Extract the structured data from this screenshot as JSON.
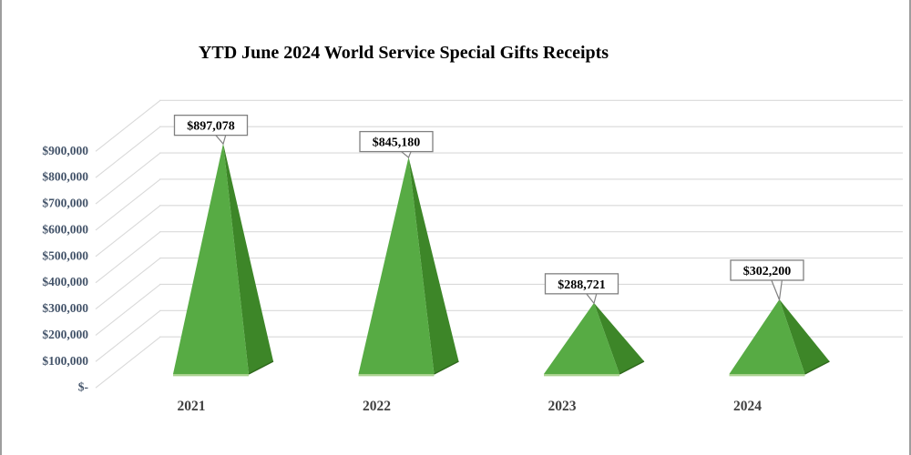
{
  "title": "YTD June 2024 World Service Special Gifts Receipts",
  "chart_data": {
    "type": "bar",
    "subtype": "3d-pyramid",
    "title": "YTD June 2024 World Service Special Gifts Receipts",
    "categories": [
      "2021",
      "2022",
      "2023",
      "2024"
    ],
    "values": [
      897078,
      845180,
      288721,
      302200
    ],
    "data_labels": [
      "$897,078",
      "$845,180",
      "$288,721",
      "$302,200"
    ],
    "xlabel": "",
    "ylabel": "",
    "ylim": [
      0,
      900000
    ],
    "y_tick_interval": 100000,
    "y_axis_ticks_top_down": [
      "$900,000",
      "$800,000",
      "$700,000",
      "$600,000",
      "$500,000",
      "$400,000",
      "$300,000",
      "$200,000",
      "$100,000",
      "$-"
    ],
    "grid": true,
    "legend": false,
    "colors": {
      "pyramid_front": "#57ab44",
      "pyramid_side": "#3d8628",
      "pyramid_base_edge": "#a9d18e",
      "pyramid_side_edge": "#2e681c",
      "gridline": "#d9d9d9",
      "y_axis_label": "#44546a",
      "category_label": "#404040",
      "data_label_text": "#000000",
      "data_label_border": "#808080",
      "data_label_fill": "#ffffff"
    }
  }
}
